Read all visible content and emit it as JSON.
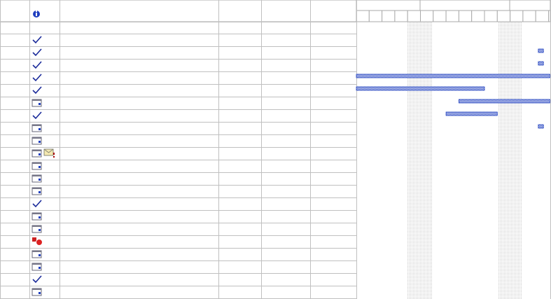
{
  "gantt": {
    "bars": [
      null,
      null,
      {
        "start": 14.2,
        "end": 14.6
      },
      {
        "start": 14.2,
        "end": 14.6
      },
      {
        "start": 0,
        "end": 15.1
      },
      {
        "start": 0,
        "end": 10
      },
      {
        "start": 8,
        "end": 15.1
      },
      {
        "start": 7,
        "end": 11
      },
      {
        "start": 14.2,
        "end": 14.6
      },
      null,
      null,
      null,
      null,
      null,
      null,
      null,
      null,
      null,
      null,
      null,
      null,
      null
    ]
  }
}
